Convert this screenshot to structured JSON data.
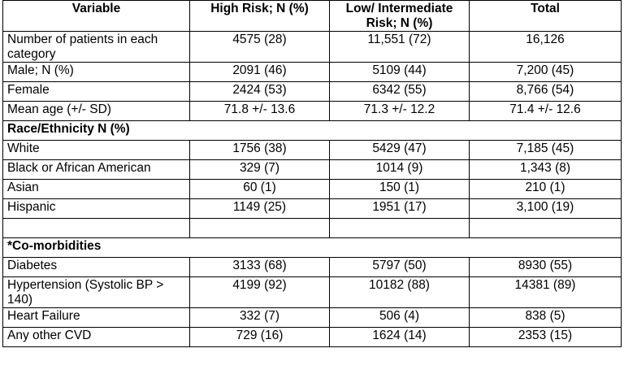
{
  "table": {
    "headers": [
      "Variable",
      "High Risk; N (%)",
      "Low/ Intermediate Risk; N (%)",
      "Total"
    ],
    "rows": [
      {
        "variable": "Number of patients in each category",
        "high": "4575 (28)",
        "low": "11,551 (72)",
        "total": "16,126"
      },
      {
        "variable": "Male; N (%)",
        "high": "2091 (46)",
        "low": "5109 (44)",
        "total": "7,200 (45)"
      },
      {
        "variable": "Female",
        "high": "2424 (53)",
        "low": "6342 (55)",
        "total": "8,766 (54)"
      },
      {
        "variable": "Mean age (+/- SD)",
        "high": "71.8 +/- 13.6",
        "low": "71.3 +/- 12.2",
        "total": "71.4 +/- 12.6"
      }
    ],
    "race_section": "Race/Ethnicity N (%)",
    "race_rows": [
      {
        "variable": "White",
        "high": "1756 (38)",
        "low": "5429 (47)",
        "total": "7,185 (45)"
      },
      {
        "variable": "Black or African American",
        "high": "329 (7)",
        "low": "1014 (9)",
        "total": "1,343 (8)"
      },
      {
        "variable": "Asian",
        "high": "60 (1)",
        "low": "150 (1)",
        "total": "210 (1)"
      },
      {
        "variable": "Hispanic",
        "high": "1149 (25)",
        "low": "1951 (17)",
        "total": "3,100 (19)"
      }
    ],
    "comorb_section": "*Co-morbidities",
    "comorb_rows": [
      {
        "variable": "Diabetes",
        "high": "3133 (68)",
        "low": "5797 (50)",
        "total": "8930 (55)"
      },
      {
        "variable": "Hypertension (Systolic BP > 140)",
        "high": "4199 (92)",
        "low": "10182 (88)",
        "total": "14381 (89)"
      },
      {
        "variable": "Heart Failure",
        "high": "332 (7)",
        "low": "506 (4)",
        "total": "838 (5)"
      },
      {
        "variable": "Any other CVD",
        "high": "729 (16)",
        "low": "1624 (14)",
        "total": "2353 (15)"
      }
    ]
  }
}
